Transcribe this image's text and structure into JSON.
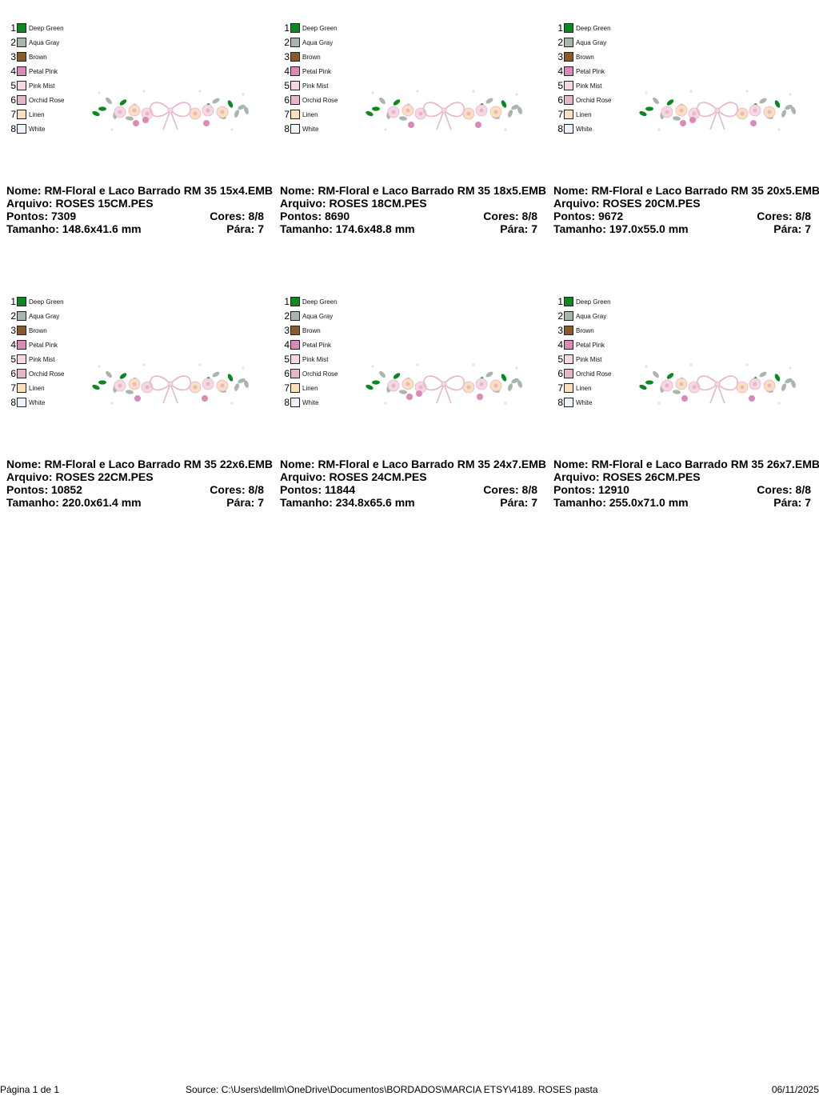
{
  "palette": [
    {
      "num": "1",
      "name": "Deep Green",
      "color": "#0a8a1e"
    },
    {
      "num": "2",
      "name": "Aqua Gray",
      "color": "#a9b6ac"
    },
    {
      "num": "3",
      "name": "Brown",
      "color": "#8b5a2b"
    },
    {
      "num": "4",
      "name": "Petal Pink",
      "color": "#d98ab6"
    },
    {
      "num": "5",
      "name": "Pink Mist",
      "color": "#f6d8e4"
    },
    {
      "num": "6",
      "name": "Orchid Rose",
      "color": "#e6b6cc"
    },
    {
      "num": "7",
      "name": "Linen",
      "color": "#fbe0bc"
    },
    {
      "num": "8",
      "name": "White",
      "color": "#eef2fb"
    }
  ],
  "designs": [
    {
      "nome": "Nome: RM-Floral e Laco Barrado RM 35 15x4.EMB",
      "arquivo": "Arquivo: ROSES 15CM.PES",
      "pontos": "Pontos: 7309",
      "cores": "Cores: 8/8",
      "tamanho": "Tamanho: 148.6x41.6 mm",
      "para": "Pára: 7"
    },
    {
      "nome": "Nome: RM-Floral e Laco Barrado RM 35 18x5.EMB",
      "arquivo": "Arquivo: ROSES 18CM.PES",
      "pontos": "Pontos: 8690",
      "cores": "Cores: 8/8",
      "tamanho": "Tamanho: 174.6x48.8 mm",
      "para": "Pára: 7"
    },
    {
      "nome": "Nome: RM-Floral e Laco Barrado RM 35 20x5.EMB",
      "arquivo": "Arquivo: ROSES 20CM.PES",
      "pontos": "Pontos: 9672",
      "cores": "Cores: 8/8",
      "tamanho": "Tamanho: 197.0x55.0 mm",
      "para": "Pára: 7"
    },
    {
      "nome": "Nome: RM-Floral e Laco Barrado RM 35 22x6.EMB",
      "arquivo": "Arquivo: ROSES 22CM.PES",
      "pontos": "Pontos: 10852",
      "cores": "Cores: 8/8",
      "tamanho": "Tamanho: 220.0x61.4 mm",
      "para": "Pára: 7"
    },
    {
      "nome": "Nome: RM-Floral e Laco Barrado RM 35 24x7.EMB",
      "arquivo": "Arquivo: ROSES 24CM.PES",
      "pontos": "Pontos: 11844",
      "cores": "Cores: 8/8",
      "tamanho": "Tamanho: 234.8x65.6 mm",
      "para": "Pára: 7"
    },
    {
      "nome": "Nome: RM-Floral e Laco Barrado RM 35 26x7.EMB",
      "arquivo": "Arquivo: ROSES 26CM.PES",
      "pontos": "Pontos: 12910",
      "cores": "Cores: 8/8",
      "tamanho": "Tamanho: 255.0x71.0 mm",
      "para": "Pára: 7"
    }
  ],
  "footer": {
    "page": "Página 1 de 1",
    "source": "Source: C:\\Users\\dellm\\OneDrive\\Documentos\\BORDADOS\\MARCIA ETSY\\4189. ROSES pasta",
    "date": "06/11/2025"
  }
}
